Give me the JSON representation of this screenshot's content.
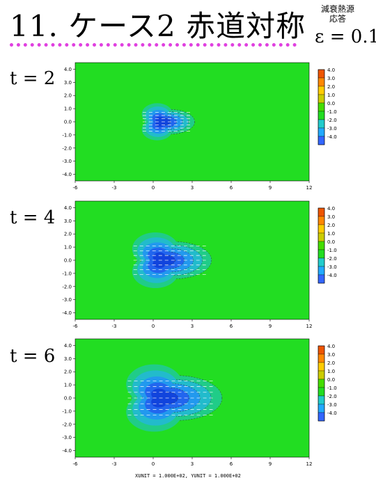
{
  "header": {
    "title": "11.  ケース2 赤道対称",
    "side_note_line1": "減衰熱源",
    "side_note_line2": "応答",
    "epsilon": "ε = 0.1"
  },
  "footer": "XUNIT = 1.000E+02, YUNIT = 1.000E+02",
  "chart_data": [
    {
      "type": "heatmap",
      "label": "t = 2",
      "x_ticks": [
        "-6",
        "-3",
        "0",
        "3",
        "6",
        "9",
        "12"
      ],
      "y_ticks": [
        "4.0",
        "3.0",
        "2.0",
        "1.0",
        "0.0",
        "-1.0",
        "-2.0",
        "-3.0",
        "-4.0"
      ],
      "xlim": [
        -6,
        12
      ],
      "ylim": [
        -4.5,
        4.5
      ],
      "colorbar": [
        "4.0",
        "3.0",
        "2.0",
        "1.0",
        "0.0",
        "-1.0",
        "-2.0",
        "-3.0",
        "-4.0"
      ],
      "anomaly": {
        "center_x": 0.6,
        "radius": 1.6,
        "min_value": -4.0
      }
    },
    {
      "type": "heatmap",
      "label": "t = 4",
      "x_ticks": [
        "-6",
        "-3",
        "0",
        "3",
        "6",
        "9",
        "12"
      ],
      "y_ticks": [
        "4.0",
        "3.0",
        "2.0",
        "1.0",
        "0.0",
        "-1.0",
        "-2.0",
        "-3.0",
        "-4.0"
      ],
      "xlim": [
        -6,
        12
      ],
      "ylim": [
        -4.5,
        4.5
      ],
      "colorbar": [
        "4.0",
        "3.0",
        "2.0",
        "1.0",
        "0.0",
        "-1.0",
        "-2.0",
        "-3.0",
        "-4.0"
      ],
      "anomaly": {
        "center_x": 0.6,
        "radius": 2.4,
        "min_value": -4.0
      }
    },
    {
      "type": "heatmap",
      "label": "t = 6",
      "x_ticks": [
        "-6",
        "-3",
        "0",
        "3",
        "6",
        "9",
        "12"
      ],
      "y_ticks": [
        "4.0",
        "3.0",
        "2.0",
        "1.0",
        "0.0",
        "-1.0",
        "-2.0",
        "-3.0",
        "-4.0"
      ],
      "xlim": [
        -6,
        12
      ],
      "ylim": [
        -4.5,
        4.5
      ],
      "colorbar": [
        "4.0",
        "3.0",
        "2.0",
        "1.0",
        "0.0",
        "-1.0",
        "-2.0",
        "-3.0",
        "-4.0"
      ],
      "anomaly": {
        "center_x": 0.6,
        "radius": 2.9,
        "min_value": -4.0
      }
    }
  ],
  "colors": {
    "background_field": "#22dd22",
    "level_colors": [
      "#ee5500",
      "#ff8800",
      "#ffcc00",
      "#cccc00",
      "#44dd00",
      "#22dd22",
      "#22cccc",
      "#22aaff",
      "#3366ff"
    ]
  }
}
